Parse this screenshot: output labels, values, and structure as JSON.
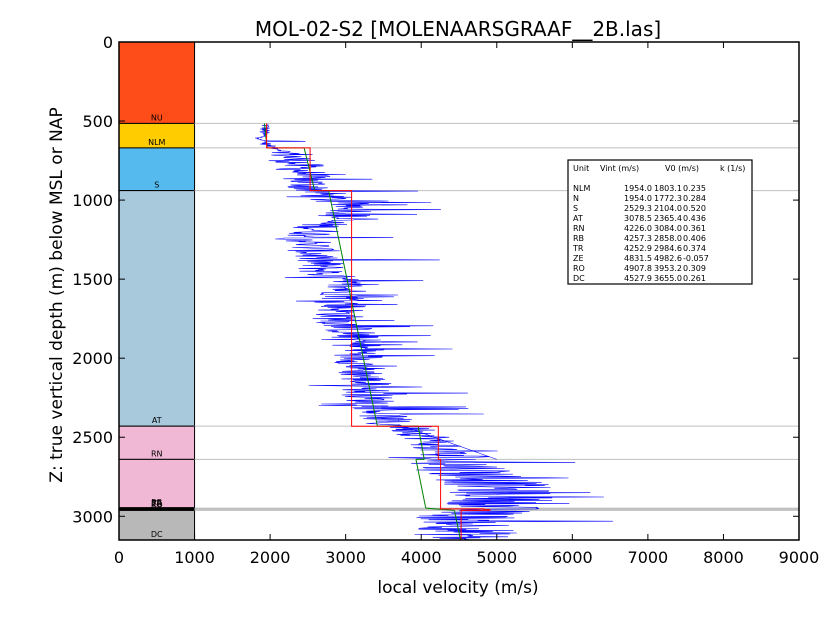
{
  "chart_data": {
    "type": "line",
    "title": "MOL-02-S2 [MOLENAARSGRAAF__2B.las]",
    "xlabel": "local velocity (m/s)",
    "ylabel": "Z: true vertical depth (m) below MSL or NAP",
    "xlim": [
      0,
      9000
    ],
    "ylim": [
      3150,
      0
    ],
    "xticks": [
      "0",
      "1000",
      "2000",
      "3000",
      "4000",
      "5000",
      "6000",
      "7000",
      "8000",
      "9000"
    ],
    "yticks": [
      "0",
      "500",
      "1000",
      "1500",
      "2000",
      "2500",
      "3000"
    ],
    "grid": "horizontal lines at formation tops",
    "layers": [
      {
        "code": "NU",
        "top": 0,
        "bottom": 515,
        "color": "#ff4d1a"
      },
      {
        "code": "NLM",
        "top": 515,
        "bottom": 670,
        "color": "#ffcc00"
      },
      {
        "code": "S",
        "top": 670,
        "bottom": 940,
        "color": "#55bbee"
      },
      {
        "code": "AT",
        "top": 940,
        "bottom": 2430,
        "color": "#a8c8dc"
      },
      {
        "code": "RN",
        "top": 2430,
        "bottom": 2640,
        "color": "#f0b8d4"
      },
      {
        "code": "RB",
        "top": 2640,
        "bottom": 2948,
        "color": "#f0b8d4"
      },
      {
        "code": "TR",
        "top": 2948,
        "bottom": 2953,
        "color": "#f0b8d4"
      },
      {
        "code": "ZE",
        "top": 2953,
        "bottom": 2958,
        "color": "#f0b8d4"
      },
      {
        "code": "RO",
        "top": 2958,
        "bottom": 2963,
        "color": "#f0b8d4"
      },
      {
        "code": "DC",
        "top": 2963,
        "bottom": 3150,
        "color": "#b8b8b8"
      }
    ],
    "table": {
      "header": [
        "Unit",
        "Vint (m/s)",
        "V0 (m/s)",
        "k (1/s)"
      ],
      "rows": [
        [
          "NLM",
          "1954.0",
          "1803.1",
          "0.235"
        ],
        [
          "N",
          "1954.0",
          "1772.3",
          "0.284"
        ],
        [
          "S",
          "2529.3",
          "2104.0",
          "0.520"
        ],
        [
          "AT",
          "3078.5",
          "2365.4",
          "0.436"
        ],
        [
          "RN",
          "4226.0",
          "3084.0",
          "0.361"
        ],
        [
          "RB",
          "4257.3",
          "2858.0",
          "0.406"
        ],
        [
          "TR",
          "4252.9",
          "2984.6",
          "0.374"
        ],
        [
          "ZE",
          "4831.5",
          "4982.6",
          "-0.057"
        ],
        [
          "RO",
          "4907.8",
          "3953.2",
          "0.309"
        ],
        [
          "DC",
          "4527.9",
          "3655.0",
          "0.261"
        ]
      ]
    },
    "series": [
      {
        "color": "#ff0000",
        "style": "step",
        "points": [
          [
            1954,
            515
          ],
          [
            1954,
            670
          ],
          [
            2529,
            670
          ],
          [
            2529,
            940
          ],
          [
            3078,
            940
          ],
          [
            3078,
            2430
          ],
          [
            4226,
            2430
          ],
          [
            4226,
            2640
          ],
          [
            4257,
            2640
          ],
          [
            4257,
            2948
          ],
          [
            4253,
            2948
          ],
          [
            4253,
            2953
          ],
          [
            4831,
            2953
          ],
          [
            4831,
            2958
          ],
          [
            4908,
            2958
          ],
          [
            4908,
            2963
          ],
          [
            4528,
            2963
          ],
          [
            4528,
            3150
          ]
        ]
      },
      {
        "color": "#008000",
        "style": "linear-gradient",
        "segments": [
          [
            [
              1925,
              515
            ],
            [
              1960,
              670
            ]
          ],
          [
            [
              2450,
              670
            ],
            [
              2590,
              940
            ]
          ],
          [
            [
              2775,
              940
            ],
            [
              3420,
              2430
            ]
          ],
          [
            [
              3960,
              2430
            ],
            [
              4040,
              2640
            ]
          ],
          [
            [
              3930,
              2640
            ],
            [
              4060,
              2948
            ]
          ],
          [
            [
              4440,
              2963
            ],
            [
              4520,
              3150
            ]
          ]
        ]
      },
      {
        "color": "#0000ff",
        "style": "log-trace",
        "profile": [
          [
            520,
            1950
          ],
          [
            600,
            1900
          ],
          [
            650,
            1950
          ],
          [
            700,
            2250
          ],
          [
            800,
            2400
          ],
          [
            900,
            2500
          ],
          [
            1000,
            2800
          ],
          [
            1050,
            3200
          ],
          [
            1100,
            3000
          ],
          [
            1150,
            2700
          ],
          [
            1250,
            2500
          ],
          [
            1350,
            2600
          ],
          [
            1450,
            2700
          ],
          [
            1550,
            3000
          ],
          [
            1650,
            3000
          ],
          [
            1750,
            2900
          ],
          [
            1850,
            3100
          ],
          [
            1950,
            3200
          ],
          [
            2050,
            3200
          ],
          [
            2150,
            3250
          ],
          [
            2250,
            3300
          ],
          [
            2350,
            3500
          ],
          [
            2420,
            3550
          ],
          [
            2430,
            3800
          ],
          [
            2500,
            4100
          ],
          [
            2600,
            4300
          ],
          [
            2650,
            4400
          ],
          [
            2700,
            4600
          ],
          [
            2800,
            5000
          ],
          [
            2900,
            5100
          ],
          [
            2950,
            4900
          ],
          [
            3000,
            4600
          ],
          [
            3050,
            4700
          ],
          [
            3100,
            4600
          ],
          [
            3150,
            4550
          ]
        ]
      }
    ]
  }
}
